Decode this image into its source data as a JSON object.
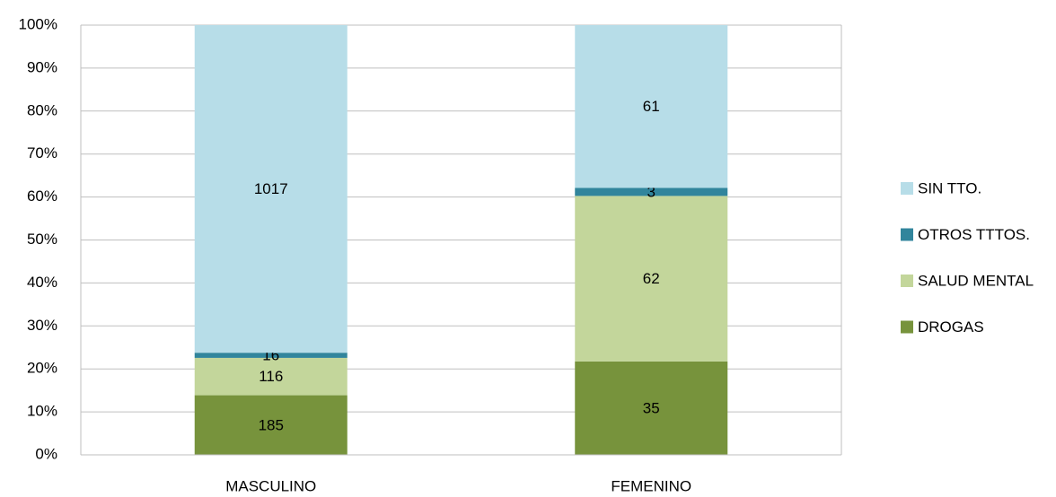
{
  "chart_data": {
    "type": "stacked_percent_bar",
    "categories": [
      "MASCULINO",
      "FEMENINO"
    ],
    "series": [
      {
        "name": "DROGAS",
        "color": "#77933c",
        "values": [
          185,
          35
        ]
      },
      {
        "name": "SALUD MENTAL",
        "color": "#c3d69b",
        "values": [
          116,
          62
        ]
      },
      {
        "name": "OTROS TTTOS.",
        "color": "#31859c",
        "values": [
          16,
          3
        ]
      },
      {
        "name": "SIN TTO.",
        "color": "#b7dde8",
        "values": [
          1017,
          61
        ]
      }
    ],
    "ylim": [
      0,
      100
    ],
    "yticks": [
      {
        "value": 0,
        "label": "0%"
      },
      {
        "value": 10,
        "label": "10%"
      },
      {
        "value": 20,
        "label": "20%"
      },
      {
        "value": 30,
        "label": "30%"
      },
      {
        "value": 40,
        "label": "40%"
      },
      {
        "value": 50,
        "label": "50%"
      },
      {
        "value": 60,
        "label": "60%"
      },
      {
        "value": 70,
        "label": "70%"
      },
      {
        "value": 80,
        "label": "80%"
      },
      {
        "value": 90,
        "label": "90%"
      },
      {
        "value": 100,
        "label": "100%"
      }
    ],
    "grid": true,
    "legend": "right"
  }
}
